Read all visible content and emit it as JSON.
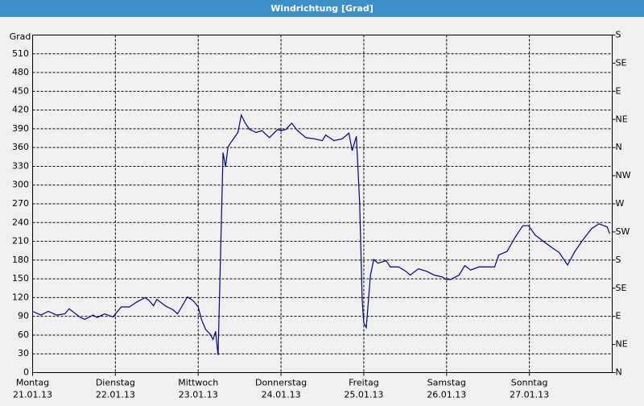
{
  "chart_data": {
    "type": "line",
    "title": "Windrichtung [Grad]",
    "ylabel": "Grad",
    "xlim": [
      0,
      7
    ],
    "xticks": [
      {
        "value": 0,
        "label": "Montag"
      },
      {
        "value": 1,
        "label": "Dienstag"
      },
      {
        "value": 2,
        "label": "Mittwoch"
      },
      {
        "value": 3,
        "label": "Donnerstag"
      },
      {
        "value": 4,
        "label": "Freitag"
      },
      {
        "value": 5,
        "label": "Samstag"
      },
      {
        "value": 6,
        "label": "Sonntag"
      }
    ],
    "xtick_dates": [
      "21.01.13",
      "22.01.13",
      "23.01.13",
      "24.01.13",
      "25.01.13",
      "26.01.13",
      "27.01.13"
    ],
    "ylim": [
      0,
      540
    ],
    "yticks": [
      0,
      30,
      60,
      90,
      120,
      150,
      180,
      210,
      240,
      270,
      300,
      330,
      360,
      390,
      420,
      450,
      480,
      510
    ],
    "y2lim": [
      0,
      540
    ],
    "y2ticks": [
      {
        "value": 0,
        "label": "N"
      },
      {
        "value": 45,
        "label": "NE"
      },
      {
        "value": 90,
        "label": "E"
      },
      {
        "value": 135,
        "label": "SE"
      },
      {
        "value": 180,
        "label": "S"
      },
      {
        "value": 225,
        "label": "SW"
      },
      {
        "value": 270,
        "label": "W"
      },
      {
        "value": 315,
        "label": "NW"
      },
      {
        "value": 360,
        "label": "N"
      },
      {
        "value": 405,
        "label": "NE"
      },
      {
        "value": 450,
        "label": "E"
      },
      {
        "value": 495,
        "label": "SE"
      },
      {
        "value": 540,
        "label": "S"
      }
    ],
    "grid": true,
    "series": [
      {
        "color": "#00008b",
        "x": [
          0.0,
          0.1,
          0.19,
          0.29,
          0.39,
          0.44,
          0.58,
          0.63,
          0.73,
          0.78,
          0.87,
          0.97,
          1.07,
          1.17,
          1.26,
          1.36,
          1.41,
          1.46,
          1.5,
          1.6,
          1.7,
          1.75,
          1.8,
          1.87,
          1.94,
          2.0,
          2.04,
          2.09,
          2.14,
          2.18,
          2.21,
          2.24,
          2.3,
          2.33,
          2.36,
          2.41,
          2.48,
          2.52,
          2.57,
          2.62,
          2.7,
          2.77,
          2.86,
          2.96,
          3.0,
          3.06,
          3.13,
          3.2,
          3.3,
          3.4,
          3.5,
          3.54,
          3.64,
          3.74,
          3.82,
          3.86,
          3.91,
          3.95,
          3.98,
          4.0,
          4.03,
          4.08,
          4.12,
          4.17,
          4.27,
          4.32,
          4.42,
          4.51,
          4.56,
          4.66,
          4.76,
          4.85,
          4.95,
          4.99,
          5.05,
          5.15,
          5.22,
          5.29,
          5.39,
          5.49,
          5.58,
          5.63,
          5.73,
          5.83,
          5.92,
          5.99,
          6.07,
          6.17,
          6.26,
          6.36,
          6.46,
          6.55,
          6.65,
          6.75,
          6.84,
          6.94,
          6.97
        ],
        "values": [
          98,
          92,
          98,
          92,
          94,
          102,
          88,
          85,
          92,
          88,
          94,
          89,
          105,
          105,
          113,
          120,
          115,
          107,
          117,
          107,
          100,
          94,
          105,
          121,
          115,
          105,
          85,
          69,
          62,
          53,
          66,
          28,
          352,
          329,
          361,
          371,
          384,
          412,
          399,
          389,
          384,
          387,
          376,
          389,
          387,
          389,
          399,
          387,
          376,
          374,
          371,
          380,
          371,
          374,
          383,
          355,
          378,
          271,
          117,
          79,
          72,
          156,
          181,
          175,
          179,
          169,
          169,
          162,
          156,
          166,
          162,
          156,
          153,
          149,
          149,
          156,
          171,
          164,
          169,
          169,
          169,
          188,
          194,
          217,
          235,
          235,
          220,
          210,
          201,
          192,
          172,
          194,
          213,
          230,
          238,
          233,
          222
        ]
      }
    ]
  }
}
